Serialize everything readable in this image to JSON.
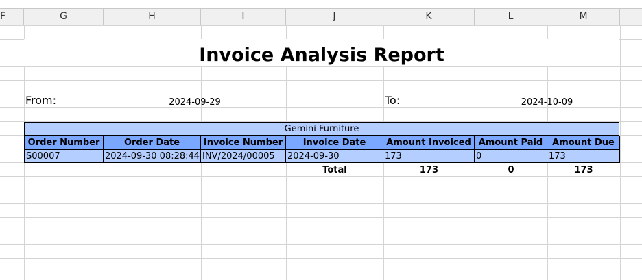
{
  "sheet": {
    "partial_column_label": "F",
    "columns": [
      "G",
      "H",
      "I",
      "J",
      "K",
      "L",
      "M"
    ]
  },
  "report": {
    "title": "Invoice Analysis Report",
    "from_label": "From:",
    "from_date": "2024-09-29",
    "to_label": "To:",
    "to_date": "2024-10-09",
    "company": "Gemini Furniture"
  },
  "table": {
    "headers": [
      "Order Number",
      "Order Date",
      "Invoice Number",
      "Invoice Date",
      "Amount Invoiced",
      "Amount Paid",
      "Amount Due"
    ],
    "rows": [
      [
        "S00007",
        "2024-09-30 08:28:44",
        "INV/2024/00005",
        "2024-09-30",
        "173",
        "0",
        "173"
      ]
    ],
    "total": {
      "label": "Total",
      "amount_invoiced": "173",
      "amount_paid": "0",
      "amount_due": "173"
    }
  },
  "colors": {
    "header_fill": "#7aa7ff",
    "row_fill": "#b4ceff",
    "grid": "#d4d4d4"
  }
}
